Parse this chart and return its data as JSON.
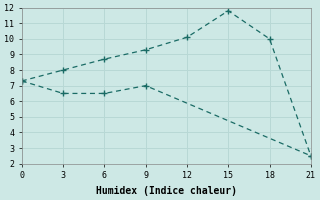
{
  "xlabel": "Humidex (Indice chaleur)",
  "bg_color": "#cde8e5",
  "line_color": "#1a6b65",
  "grid_color": "#b8d8d5",
  "line1_x": [
    0,
    3,
    6,
    9,
    12,
    15,
    18,
    21
  ],
  "line1_y": [
    7.3,
    8.0,
    8.7,
    9.3,
    10.1,
    11.8,
    10.0,
    2.5
  ],
  "line2_x": [
    0,
    3,
    6,
    9,
    21
  ],
  "line2_y": [
    7.3,
    6.5,
    6.5,
    7.0,
    2.5
  ],
  "line3_x": [
    0,
    21
  ],
  "line3_y": [
    7.3,
    2.5
  ],
  "xlim": [
    0,
    21
  ],
  "ylim": [
    2,
    12
  ],
  "xticks": [
    0,
    3,
    6,
    9,
    12,
    15,
    18,
    21
  ],
  "yticks": [
    2,
    3,
    4,
    5,
    6,
    7,
    8,
    9,
    10,
    11,
    12
  ]
}
